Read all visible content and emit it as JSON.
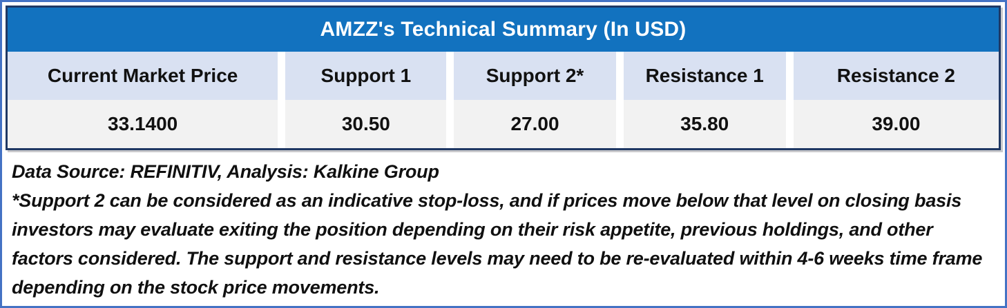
{
  "table": {
    "title": "AMZZ's Technical Summary (In USD)",
    "columns": [
      {
        "header": "Current Market Price",
        "value": "33.1400"
      },
      {
        "header": "Support 1",
        "value": "30.50"
      },
      {
        "header": "Support 2*",
        "value": "27.00"
      },
      {
        "header": "Resistance 1",
        "value": "35.80"
      },
      {
        "header": "Resistance 2",
        "value": "39.00"
      }
    ]
  },
  "notes": {
    "data_source": "Data Source: REFINITIV, Analysis: Kalkine Group",
    "footnote": "*Support 2 can be considered as an indicative stop-loss, and if prices move below that level on closing basis investors may evaluate exiting the position depending on their risk appetite, previous holdings, and other factors considered. The support and resistance levels may need to be re-evaluated within 4-6 weeks time frame depending on the stock price movements."
  },
  "colors": {
    "title_bg": "#1272BF",
    "title_text": "#FFFFFF",
    "header_row_bg": "#D9E1F2",
    "value_row_bg": "#F2F2F2",
    "table_border": "#1F3864",
    "outer_frame_border": "#4472C4",
    "body_text": "#111111"
  }
}
